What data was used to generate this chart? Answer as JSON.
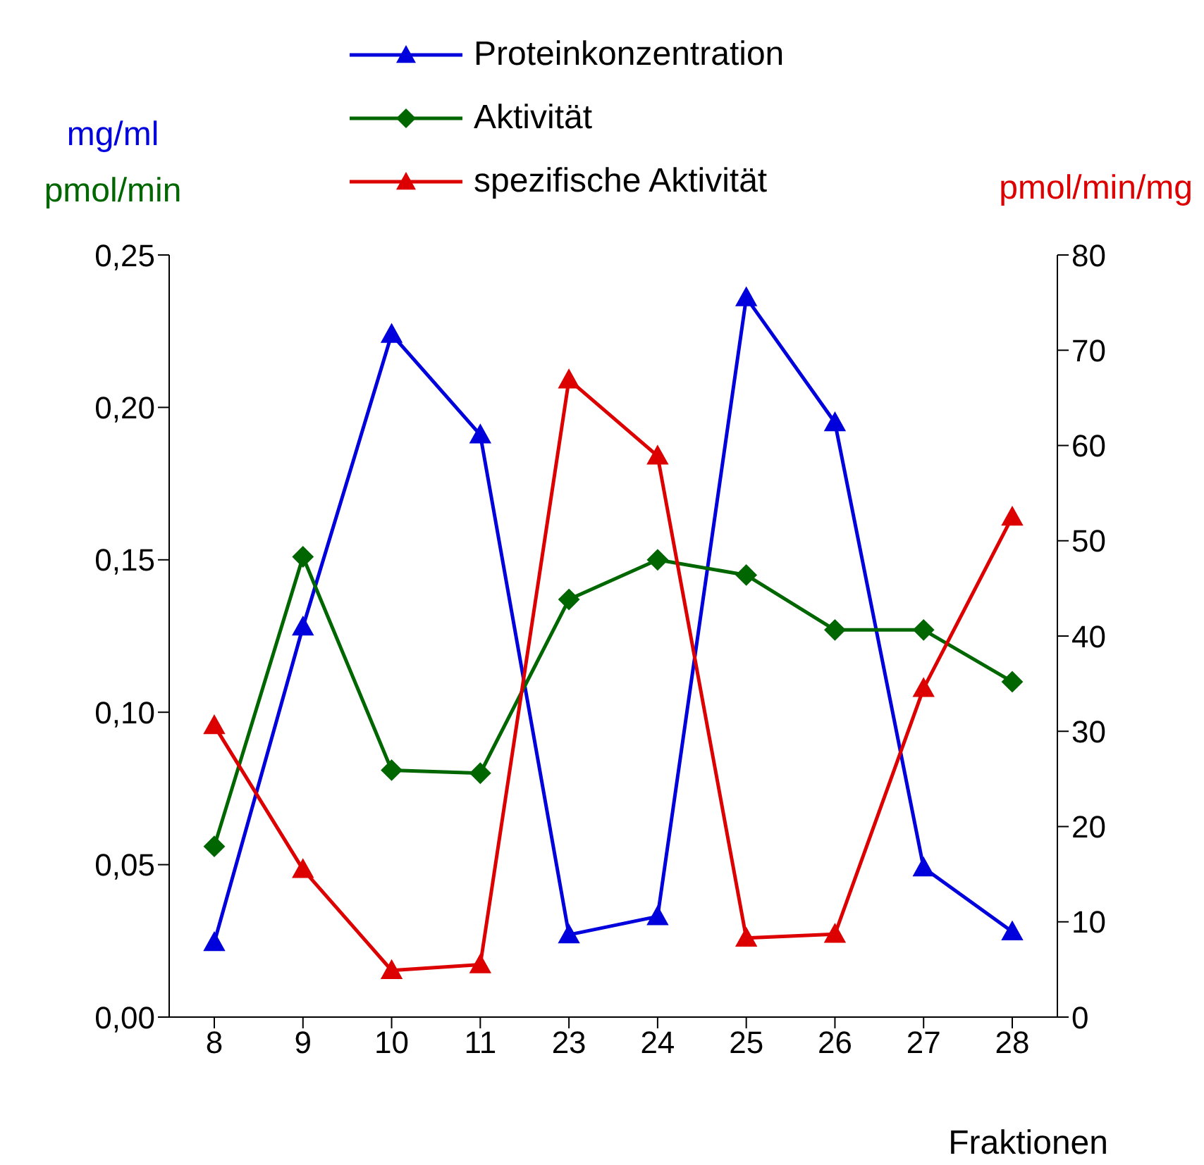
{
  "chart_data": {
    "type": "line",
    "xlabel": "Fraktionen",
    "ylabel": "mg/ml\npmol/min",
    "y2label": "pmol/min/mg",
    "categories": [
      "8",
      "9",
      "10",
      "11",
      "23",
      "24",
      "25",
      "26",
      "27",
      "28"
    ],
    "series": [
      {
        "name": "Proteinkonzentration",
        "color": "#0000dd",
        "marker": "triangle",
        "values": [
          0.0245,
          0.128,
          0.224,
          0.191,
          0.027,
          0.033,
          0.236,
          0.195,
          0.049,
          0.028
        ]
      },
      {
        "name": "Aktivität",
        "color": "#006600",
        "marker": "diamond",
        "values": [
          0.056,
          0.151,
          0.081,
          0.08,
          0.137,
          0.15,
          0.145,
          0.127,
          0.127,
          0.11
        ]
      },
      {
        "name": "spezifische Aktivität",
        "color": "#dd0000",
        "marker": "triangle",
        "axis": "y2",
        "values": [
          30.6,
          15.5,
          4.9,
          5.5,
          66.9,
          58.9,
          8.3,
          8.7,
          34.5,
          52.5
        ]
      }
    ],
    "ylim": [
      0,
      0.25
    ],
    "yticks": [
      {
        "value": 0,
        "label": "0,00"
      },
      {
        "value": 0.05,
        "label": "0,05"
      },
      {
        "value": 0.1,
        "label": "0,10"
      },
      {
        "value": 0.15,
        "label": "0,15"
      },
      {
        "value": 0.2,
        "label": "0,20"
      },
      {
        "value": 0.25,
        "label": "0,25"
      }
    ],
    "y2lim": [
      0,
      80
    ],
    "y2ticks": [
      0,
      10,
      20,
      30,
      40,
      50,
      60,
      70,
      80
    ],
    "grid": false,
    "legend": "top",
    "line_style": "solid"
  }
}
